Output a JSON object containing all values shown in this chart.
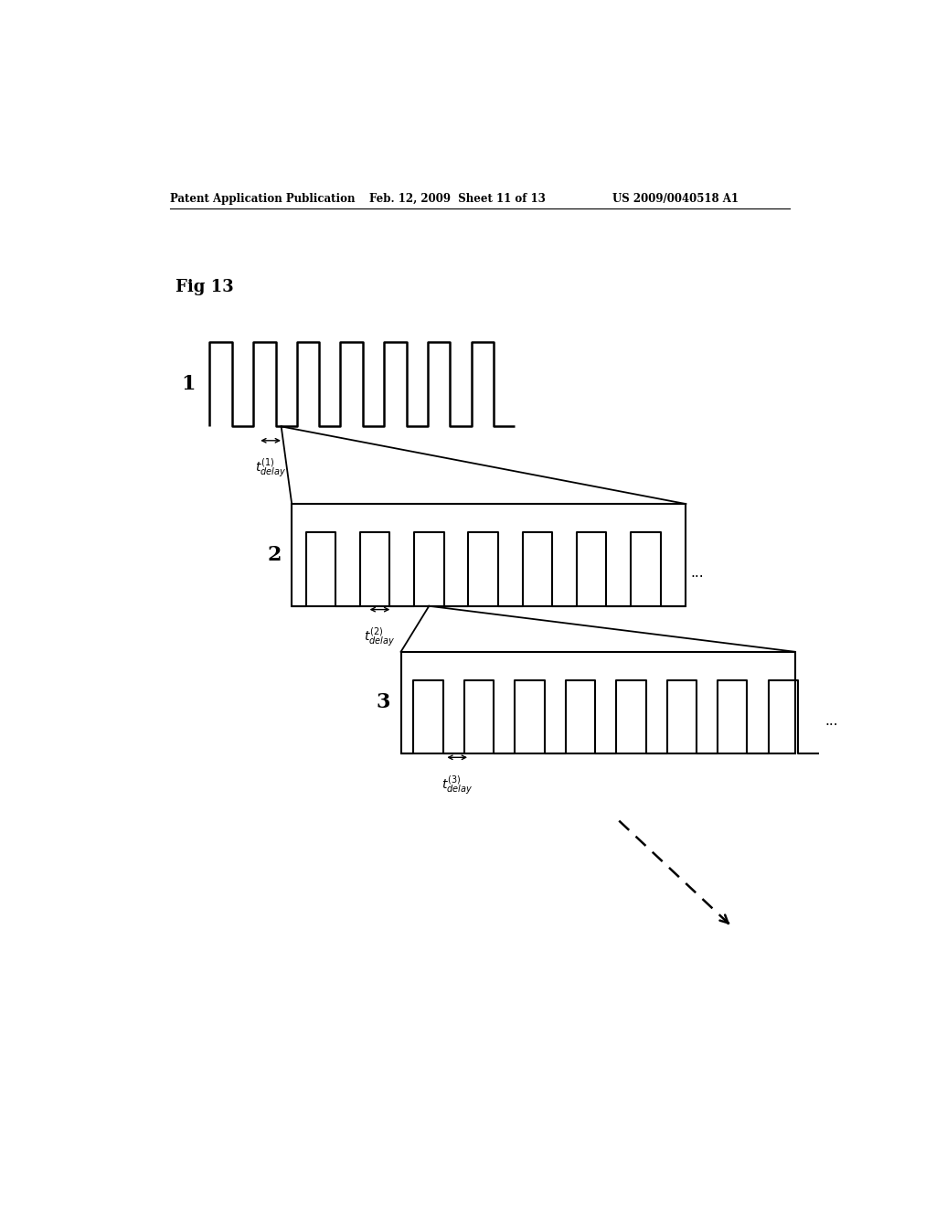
{
  "bg_color": "#ffffff",
  "header_left": "Patent Application Publication",
  "header_mid": "Feb. 12, 2009  Sheet 11 of 13",
  "header_right": "US 2009/0040518 A1",
  "fig_label": "Fig 13",
  "signal1_label": "1",
  "signal2_label": "2",
  "signal3_label": "3"
}
